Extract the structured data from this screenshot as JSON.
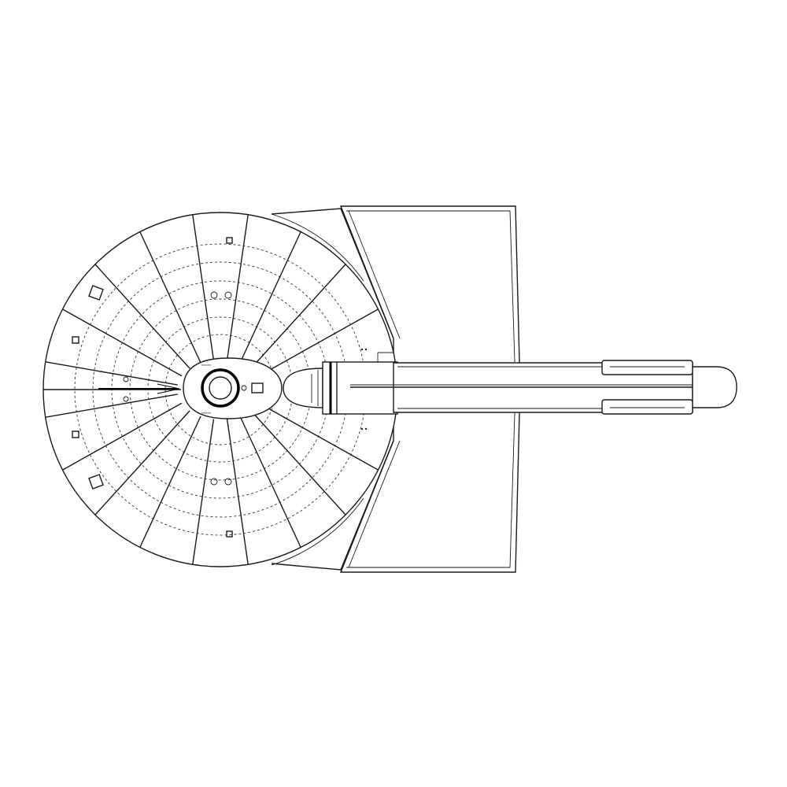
{
  "drawing": {
    "subject": "starship-top-view",
    "line_color": "#1a1a1a",
    "background": "#ffffff"
  }
}
